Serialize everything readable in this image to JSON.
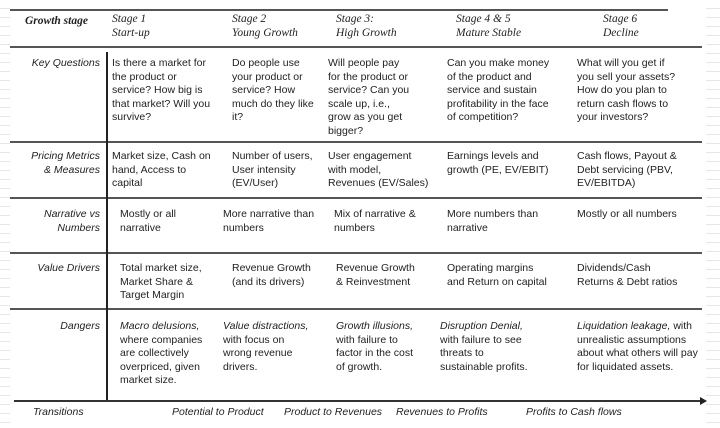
{
  "header": {
    "label": "Growth stage",
    "stages": [
      {
        "number": "Stage 1",
        "name": "Start-up"
      },
      {
        "number": "Stage 2",
        "name": "Young Growth"
      },
      {
        "number": "Stage 3:",
        "name": "High Growth"
      },
      {
        "number": "Stage 4 & 5",
        "name": "Mature Stable"
      },
      {
        "number": "Stage 6",
        "name": "Decline"
      }
    ]
  },
  "rows": [
    {
      "label": "Key Questions",
      "cells": [
        "Is there a market for\nthe product or\nservice? How big is\nthat market? Will you\nsurvive?",
        "Do people use\nyour product or\nservice? How\nmuch do they like\nit?",
        "Will people pay\nfor the product or\nservice? Can you\nscale up, i.e.,\ngrow as you get\nbigger?",
        "Can you make money\nof the product and\nservice and sustain\nprofitability in the face\nof competition?",
        "What will you get if\nyou sell your assets?\nHow do you plan to\nreturn cash flows to\nyour investors?"
      ]
    },
    {
      "label": "Pricing Metrics\n& Measures",
      "cells": [
        "Market size, Cash on\nhand, Access to\ncapital",
        "Number of users,\nUser intensity\n(EV/User)",
        "User engagement\nwith model,\nRevenues (EV/Sales)",
        "Earnings levels and\ngrowth (PE, EV/EBIT)",
        "Cash flows, Payout &\nDebt servicing (PBV,\nEV/EBITDA)"
      ]
    },
    {
      "label": "Narrative vs\nNumbers",
      "cells": [
        "Mostly or all\nnarrative",
        "More narrative than\nnumbers",
        "Mix of narrative &\nnumbers",
        "More numbers than\nnarrative",
        "Mostly or all numbers"
      ]
    },
    {
      "label": "Value Drivers",
      "cells": [
        "Total market size,\nMarket Share &\nTarget Margin",
        "Revenue Growth\n(and its drivers)",
        "Revenue Growth\n& Reinvestment",
        "Operating margins\nand Return on capital",
        "Dividends/Cash\nReturns & Debt ratios"
      ]
    },
    {
      "label": "Dangers",
      "dangers": [
        {
          "title": "Macro delusions,",
          "rest": "\nwhere companies\nare collectively\noverpriced, given\nmarket size."
        },
        {
          "title": "Value distractions,",
          "rest": "\nwith focus on\nwrong revenue\ndrivers."
        },
        {
          "title": "Growth illusions,",
          "rest": "\nwith failure to\nfactor in the cost\nof growth."
        },
        {
          "title": "Disruption Denial,",
          "rest": "\nwith failure to see\nthreats to\nsustainable profits."
        },
        {
          "title": "Liquidation leakage,",
          "rest": " with\nunrealistic assumptions\nabout what others will pay\nfor liquidated assets."
        }
      ]
    }
  ],
  "transitions": {
    "label": "Transitions",
    "items": [
      "Potential to Product",
      "Product to Revenues",
      "Revenues to Profits",
      "Profits to Cash flows"
    ]
  }
}
